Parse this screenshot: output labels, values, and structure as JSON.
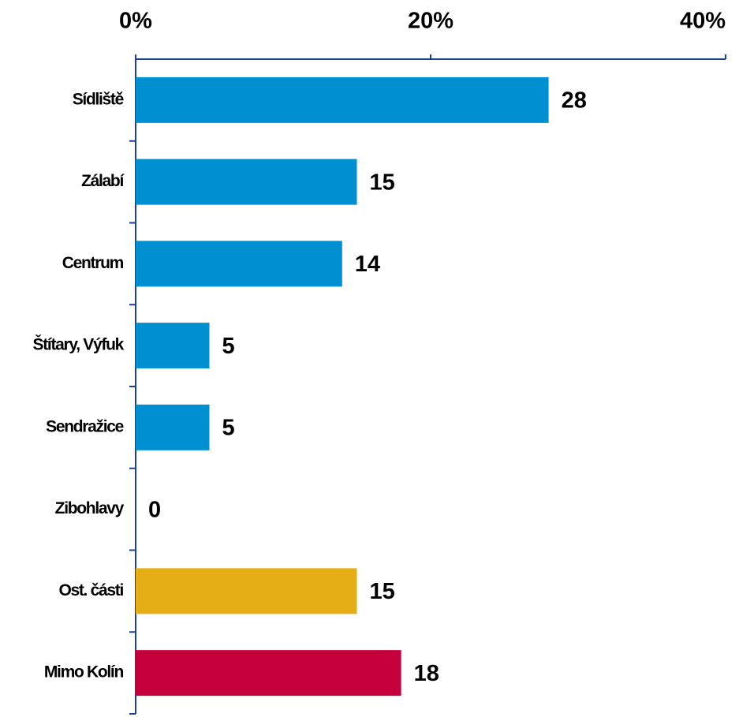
{
  "chart_data": {
    "type": "bar",
    "orientation": "horizontal",
    "categories": [
      "Sídliště",
      "Zálabí",
      "Centrum",
      "Štítary, Výfuk",
      "Sendražice",
      "Zibohlavy",
      "Ost. části",
      "Mimo Kolín"
    ],
    "values": [
      28,
      15,
      14,
      5,
      5,
      0,
      15,
      18
    ],
    "colors": [
      "#008fd0",
      "#008fd0",
      "#008fd0",
      "#008fd0",
      "#008fd0",
      "#008fd0",
      "#e5ae17",
      "#c6003c"
    ],
    "xlim": [
      0,
      40
    ],
    "xticks": [
      {
        "value": 0,
        "label": "0%"
      },
      {
        "value": 20,
        "label": "20%"
      },
      {
        "value": 40,
        "label": "40%"
      }
    ]
  }
}
